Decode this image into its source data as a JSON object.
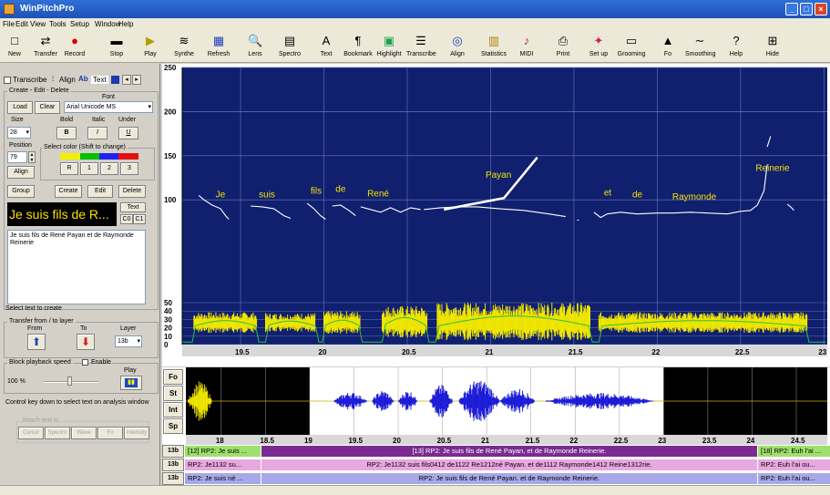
{
  "window": {
    "title": "WinPitchPro",
    "controls": [
      "_",
      "□",
      "×"
    ]
  },
  "menu": [
    "File",
    "Edit",
    "View",
    "Tools",
    "Setup",
    "Window",
    "Help"
  ],
  "toolbar": [
    {
      "label": "New",
      "icon": "new-file-icon",
      "glyph": "□"
    },
    {
      "label": "Transfer",
      "icon": "transfer-icon",
      "glyph": "⇄"
    },
    {
      "label": "Record",
      "icon": "record-icon",
      "glyph": "●"
    },
    {
      "label": "Stop",
      "icon": "stop-icon",
      "glyph": "▬"
    },
    {
      "label": "Play",
      "icon": "play-icon",
      "glyph": "▶"
    },
    {
      "label": "Synthe",
      "icon": "synthesis-icon",
      "glyph": "≋"
    },
    {
      "label": "Refresh",
      "icon": "refresh-icon",
      "glyph": "▦"
    },
    {
      "label": "Lens",
      "icon": "lens-icon",
      "glyph": "🔍"
    },
    {
      "label": "Spectro",
      "icon": "spectrogram-icon",
      "glyph": "▤"
    },
    {
      "label": "Text",
      "icon": "text-icon",
      "glyph": "A"
    },
    {
      "label": "Bookmark",
      "icon": "bookmark-icon",
      "glyph": "¶"
    },
    {
      "label": "Highlight",
      "icon": "highlight-icon",
      "glyph": "▣"
    },
    {
      "label": "Transcribe",
      "icon": "transcribe-icon",
      "glyph": "☰"
    },
    {
      "label": "Align",
      "icon": "align-icon",
      "glyph": "◎"
    },
    {
      "label": "Statistics",
      "icon": "statistics-icon",
      "glyph": "▥"
    },
    {
      "label": "MIDI",
      "icon": "midi-icon",
      "glyph": "♪"
    },
    {
      "label": "Print",
      "icon": "print-icon",
      "glyph": "⎙"
    },
    {
      "label": "Set up",
      "icon": "setup-icon",
      "glyph": "✦"
    },
    {
      "label": "Grooming",
      "icon": "grooming-icon",
      "glyph": "▭"
    },
    {
      "label": "Fo",
      "icon": "fo-icon",
      "glyph": "▲"
    },
    {
      "label": "Smoothing",
      "icon": "smoothing-icon",
      "glyph": "∼"
    },
    {
      "label": "Help",
      "icon": "help-icon",
      "glyph": "?"
    },
    {
      "label": "Hide",
      "icon": "hide-icon",
      "glyph": "⊞"
    }
  ],
  "panel": {
    "tabs": [
      "Transcribe",
      "Align",
      "Text"
    ],
    "create_group": "Create - Edit - Delete",
    "load": "Load",
    "clear": "Clear",
    "font_label": "Font",
    "font_value": "Arial Unicode MS",
    "size_label": "Size",
    "size_value": "28",
    "bold_label": "Bold",
    "italic_label": "Italic",
    "under_label": "Under",
    "bold_btn": "B",
    "italic_btn": "I",
    "under_btn": "U",
    "position_label": "Position",
    "position_value": "79",
    "color_group": "Select color (Shift to change)",
    "colors": [
      "#f0f000",
      "#00c000",
      "#2020f0",
      "#e01010"
    ],
    "color_buttons": [
      "R",
      "1",
      "2",
      "3"
    ],
    "align_btn": "Align",
    "group": "Group",
    "create": "Create",
    "edit": "Edit",
    "delete": "Delete",
    "preview": "Je suis fils de R...",
    "text_btn": "Text",
    "c0": "C0",
    "c1": "C1",
    "text_content": "Je suis fils de René Payan et de Raymonde Reinerie",
    "select_hint": "Select text to create",
    "transfer_group": "Transfer from / to layer",
    "from": "From",
    "to": "To",
    "layer_label": "Layer",
    "layer_value": "13b",
    "speed_group": "Block playback speed",
    "enable": "Enable",
    "speed_value": "100 %",
    "play": "Play",
    "control_hint": "Control key down to select text on analysis window",
    "attach_group": "Attach text to",
    "attach_buttons": [
      "Cursor",
      "Spectro",
      "Wave",
      "Fo",
      "Intensity"
    ]
  },
  "analysis": {
    "y_labels": [
      "250",
      "200",
      "150",
      "100",
      "50",
      "40",
      "30",
      "20",
      "10",
      "0"
    ],
    "x_labels": [
      "19.5",
      "20",
      "20.5",
      "21",
      "21.5",
      "22",
      "22.5",
      "23"
    ],
    "words": [
      {
        "text": "Je",
        "t": 19.35,
        "f": 103
      },
      {
        "text": "suis",
        "t": 19.61,
        "f": 103
      },
      {
        "text": "fils",
        "t": 19.92,
        "f": 107
      },
      {
        "text": "de",
        "t": 20.07,
        "f": 109
      },
      {
        "text": "René",
        "t": 20.26,
        "f": 104
      },
      {
        "text": "Payan",
        "t": 20.97,
        "f": 125
      },
      {
        "text": "et",
        "t": 21.68,
        "f": 105
      },
      {
        "text": "de",
        "t": 21.85,
        "f": 103
      },
      {
        "text": "Raymonde",
        "t": 22.09,
        "f": 100
      },
      {
        "text": "Reinerie",
        "t": 22.59,
        "f": 133
      }
    ]
  },
  "bottom": {
    "side_buttons": [
      "Fo",
      "St",
      "Int",
      "Sp"
    ],
    "x_labels": [
      "18",
      "18.5",
      "19",
      "19.5",
      "20",
      "20.5",
      "21",
      "21.5",
      "22",
      "22.5",
      "23",
      "23.5",
      "24",
      "24.5"
    ]
  },
  "layers": [
    {
      "id": "13b",
      "segments": [
        {
          "text": "[12] RP2: Je suis ...",
          "bg": "#9ee06e",
          "w": 83
        },
        {
          "text": "[13] RP2: Je suis fils de René Payan, et de Raymonde Reinerie.",
          "bg": "#7a2a90",
          "fg": "#ffffff",
          "w": 544
        },
        {
          "text": "[18] RP2: Euh l'ai ...",
          "bg": "#9ee06e",
          "w": 82
        }
      ]
    },
    {
      "id": "13b",
      "segments": [
        {
          "text": "RP2: Je1132 su...",
          "bg": "#e8a8e0",
          "w": 83
        },
        {
          "text": "RP2: Je1132 suis fils0412 de1122 Re1212né Payan. et de1112 Raymonde1412 Reine1312rie.",
          "bg": "#e8a8e0",
          "w": 544
        },
        {
          "text": "RP2: Euh l'ai ou...",
          "bg": "#e8a8e0",
          "w": 82
        }
      ]
    },
    {
      "id": "13b",
      "segments": [
        {
          "text": "RP2: Je suis né ...",
          "bg": "#a8a8e8",
          "w": 83
        },
        {
          "text": "RP2: Je suis fils de René Payan. et de Raymonde Reinerie.",
          "bg": "#a8a8e8",
          "w": 544
        },
        {
          "text": "RP2: Euh l'ai ou...",
          "bg": "#a8a8e8",
          "w": 82
        }
      ]
    }
  ]
}
